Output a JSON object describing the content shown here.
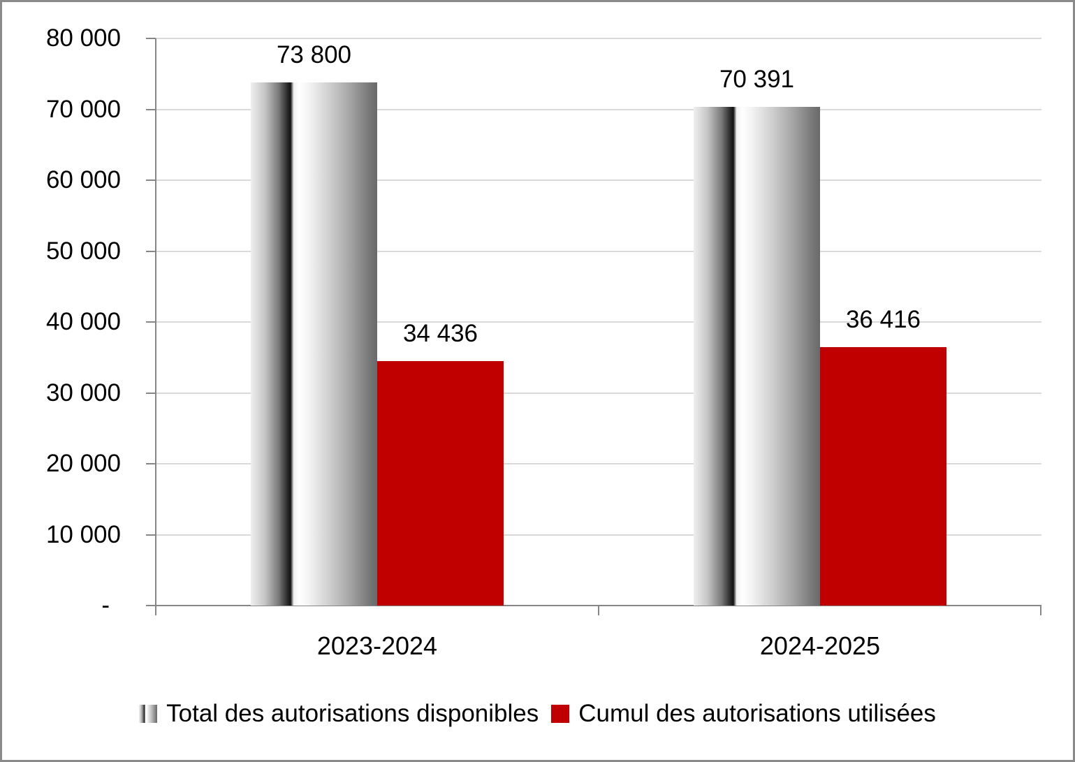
{
  "chart_data": {
    "type": "bar",
    "title": "",
    "categories": [
      "2023-2024",
      "2024-2025"
    ],
    "series": [
      {
        "name": "Total des autorisations disponibles",
        "values": [
          73800,
          70391
        ],
        "value_labels": [
          "73 800",
          "70 391"
        ],
        "fill": "gray-gradient-cylinder"
      },
      {
        "name": "Cumul des autorisations utilisées",
        "values": [
          34436,
          36416
        ],
        "value_labels": [
          "34 436",
          "36 416"
        ],
        "fill": "#C00000"
      }
    ],
    "ylim": [
      0,
      80000
    ],
    "y_ticks": [
      {
        "value": 80000,
        "label": "80 000"
      },
      {
        "value": 70000,
        "label": "70 000"
      },
      {
        "value": 60000,
        "label": "60 000"
      },
      {
        "value": 50000,
        "label": "50 000"
      },
      {
        "value": 40000,
        "label": "40 000"
      },
      {
        "value": 30000,
        "label": "30 000"
      },
      {
        "value": 20000,
        "label": "20 000"
      },
      {
        "value": 10000,
        "label": "10 000"
      },
      {
        "value": 0,
        "label": "-"
      }
    ],
    "grid": "horizontal",
    "legend_position": "bottom"
  },
  "colors": {
    "bar_red": "#C00000",
    "axis": "#868686",
    "gridline": "#D9D9D9",
    "frame_border": "#8A8A8A",
    "text": "#000000"
  }
}
